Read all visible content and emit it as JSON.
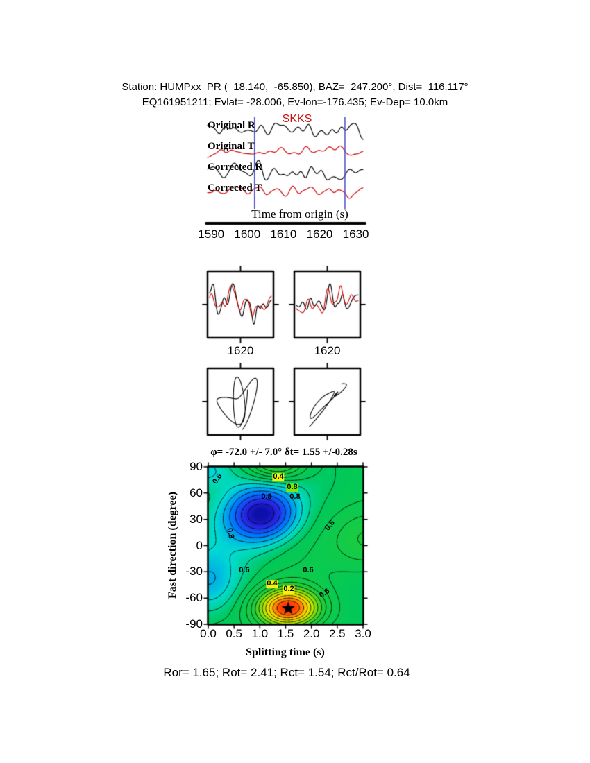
{
  "header": {
    "line1": "Station: HUMPxx_PR (  18.140,  -65.850), BAZ=  247.200°, Dist=  116.117°",
    "line2": "EQ161951211; Evlat= -28.006, Ev-lon=-176.435; Ev-Dep= 10.0km"
  },
  "chart_data": [
    {
      "type": "line",
      "name": "waveform-traces",
      "phase_label": "SKKS",
      "phase_label_color": "#cc1111",
      "trace_labels": [
        "Original R",
        "Original T",
        "Corrected R",
        "Corrected T"
      ],
      "trace_colors": [
        "#000000",
        "#cc0000",
        "#000000",
        "#cc0000"
      ],
      "xlabel": "Time from origin (s)",
      "x_ticks": [
        1590,
        1600,
        1610,
        1620,
        1630
      ],
      "x_range": [
        1589,
        1632
      ],
      "window": [
        1602,
        1627
      ],
      "window_color": "#4747c7",
      "synthetic_seeds": [
        11,
        27,
        5,
        46
      ]
    },
    {
      "type": "line",
      "name": "windowed-waveform-pair",
      "panels": [
        {
          "x_tick_label": "1620"
        },
        {
          "x_tick_label": "1620"
        }
      ],
      "colors": [
        "#000000",
        "#cc0000"
      ]
    },
    {
      "type": "scatter",
      "name": "particle-motion-pair",
      "panels": 2,
      "color": "#000000"
    },
    {
      "type": "heatmap",
      "name": "splitting-error-surface",
      "title": "φ= -72.0 +/- 7.0° δt= 1.55 +/-0.28s",
      "xlabel": "Splitting time (s)",
      "ylabel": "Fast direction (degree)",
      "x_ticks": [
        "0.0",
        "0.5",
        "1.0",
        "1.5",
        "2.0",
        "2.5",
        "3.0"
      ],
      "y_ticks": [
        90,
        60,
        30,
        0,
        -30,
        -60,
        -90
      ],
      "x_range": [
        0,
        3
      ],
      "y_range": [
        -90,
        90
      ],
      "best_phi": -72.0,
      "best_phi_err": 7.0,
      "best_dt": 1.55,
      "best_dt_err": 0.28,
      "contour_level_labels": [
        0.2,
        0.4,
        0.6,
        0.8
      ],
      "star": {
        "x": 1.55,
        "y": -72
      },
      "labels": [
        {
          "text": "0.6",
          "x": 314,
          "y": 691,
          "rot": -55,
          "bg": ""
        },
        {
          "text": "0.4",
          "x": 401,
          "y": 688,
          "rot": 0,
          "bg": "#f2f20c"
        },
        {
          "text": "0.8",
          "x": 421,
          "y": 703,
          "rot": 0,
          "bg": "#7de80c"
        },
        {
          "text": "0.8",
          "x": 384,
          "y": 717,
          "rot": 0,
          "bg": ""
        },
        {
          "text": "0.8",
          "x": 425,
          "y": 717,
          "rot": 0,
          "bg": ""
        },
        {
          "text": "0.8",
          "x": 331,
          "y": 769,
          "rot": 78,
          "bg": ""
        },
        {
          "text": "0.6",
          "x": 352,
          "y": 823,
          "rot": 0,
          "bg": ""
        },
        {
          "text": "0.6",
          "x": 444,
          "y": 823,
          "rot": 0,
          "bg": ""
        },
        {
          "text": "0.6",
          "x": 476,
          "y": 758,
          "rot": -52,
          "bg": ""
        },
        {
          "text": "0.4",
          "x": 392,
          "y": 842,
          "rot": 0,
          "bg": "#f2f20c"
        },
        {
          "text": "0.2",
          "x": 416,
          "y": 850,
          "rot": 0,
          "bg": "#f2f20c"
        },
        {
          "text": "0.6",
          "x": 468,
          "y": 856,
          "rot": -35,
          "bg": ""
        }
      ]
    }
  ],
  "footer": {
    "stats": "Ror= 1.65; Rot= 2.41; Rct= 1.54; Rct/Rot= 0.64"
  }
}
